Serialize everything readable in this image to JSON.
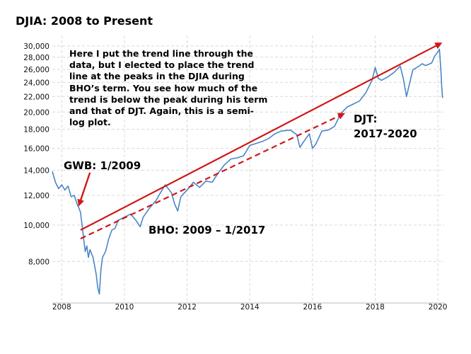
{
  "chart_data": {
    "type": "line",
    "title": "DJIA: 2008 to Present",
    "xlabel": "",
    "ylabel": "",
    "y_scale": "log",
    "xlim": [
      2007.7,
      2020.2
    ],
    "ylim": [
      6200,
      32000
    ],
    "x_ticks": [
      "2008",
      "2010",
      "2012",
      "2014",
      "2016",
      "2018",
      "2020"
    ],
    "y_ticks": [
      "8,000",
      "10,000",
      "12,000",
      "14,000",
      "16,000",
      "18,000",
      "20,000",
      "22,000",
      "24,000",
      "26,000",
      "28,000",
      "30,000"
    ],
    "grid": true,
    "series": [
      {
        "name": "DJIA",
        "color": "#4a86c5",
        "x": [
          2007.7,
          2007.8,
          2007.9,
          2008.0,
          2008.1,
          2008.2,
          2008.3,
          2008.4,
          2008.5,
          2008.55,
          2008.6,
          2008.7,
          2008.75,
          2008.8,
          2008.85,
          2008.9,
          2009.0,
          2009.1,
          2009.15,
          2009.2,
          2009.25,
          2009.3,
          2009.4,
          2009.5,
          2009.6,
          2009.7,
          2009.8,
          2010.0,
          2010.2,
          2010.4,
          2010.5,
          2010.6,
          2010.8,
          2011.0,
          2011.2,
          2011.3,
          2011.5,
          2011.6,
          2011.7,
          2011.8,
          2012.0,
          2012.2,
          2012.4,
          2012.6,
          2012.8,
          2013.0,
          2013.2,
          2013.4,
          2013.6,
          2013.8,
          2014.0,
          2014.2,
          2014.4,
          2014.6,
          2014.8,
          2015.0,
          2015.3,
          2015.5,
          2015.6,
          2015.7,
          2015.9,
          2016.0,
          2016.1,
          2016.3,
          2016.5,
          2016.7,
          2016.9,
          2017.1,
          2017.3,
          2017.5,
          2017.7,
          2017.9,
          2018.0,
          2018.1,
          2018.2,
          2018.4,
          2018.6,
          2018.8,
          2018.9,
          2019.0,
          2019.2,
          2019.4,
          2019.5,
          2019.6,
          2019.8,
          2019.9,
          2020.0,
          2020.05,
          2020.1,
          2020.12,
          2020.15
        ],
        "values": [
          13900,
          13000,
          12500,
          12800,
          12400,
          12700,
          11900,
          12000,
          11300,
          11100,
          10800,
          9200,
          8500,
          8800,
          8200,
          8600,
          8200,
          7400,
          6800,
          6550,
          7600,
          8200,
          8500,
          9200,
          9700,
          9800,
          10300,
          10500,
          10700,
          10200,
          9900,
          10500,
          11100,
          11600,
          12400,
          12800,
          12200,
          11400,
          10900,
          11900,
          12400,
          13000,
          12600,
          13100,
          13000,
          13800,
          14500,
          15000,
          15100,
          15300,
          16300,
          16500,
          16700,
          17000,
          17500,
          17800,
          17900,
          17400,
          16100,
          16600,
          17500,
          16000,
          16400,
          17800,
          17900,
          18300,
          19800,
          20600,
          21000,
          21400,
          22500,
          24300,
          26300,
          24600,
          24300,
          24800,
          25500,
          26500,
          24500,
          22000,
          25900,
          26500,
          26900,
          26600,
          27000,
          28200,
          28900,
          29400,
          25500,
          23500,
          21800
        ]
      }
    ],
    "annotations": [
      {
        "kind": "trend-line",
        "style": "solid",
        "color": "#d01818",
        "from": [
          2008.6,
          9700
        ],
        "to": [
          2020.1,
          30500
        ]
      },
      {
        "kind": "trend-line",
        "style": "dashed",
        "color": "#d01818",
        "from": [
          2008.6,
          9200
        ],
        "to": [
          2017.0,
          19800
        ]
      },
      {
        "kind": "arrow",
        "color": "#d01818",
        "from": [
          2008.9,
          13800
        ],
        "to": [
          2008.55,
          11300
        ]
      }
    ]
  },
  "labels": {
    "note": "Here I put the trend line through the data, but I elected to place the trend line at the peaks in the DJIA during BHO’s term. You see how much of the trend is below the peak during his term and that of DJT. Again, this is a semi-log plot.",
    "gwb": "GWB: 1/2009",
    "bho": "BHO: 2009 – 1/2017",
    "djt_line1": "DJT:",
    "djt_line2": "2017-2020"
  }
}
